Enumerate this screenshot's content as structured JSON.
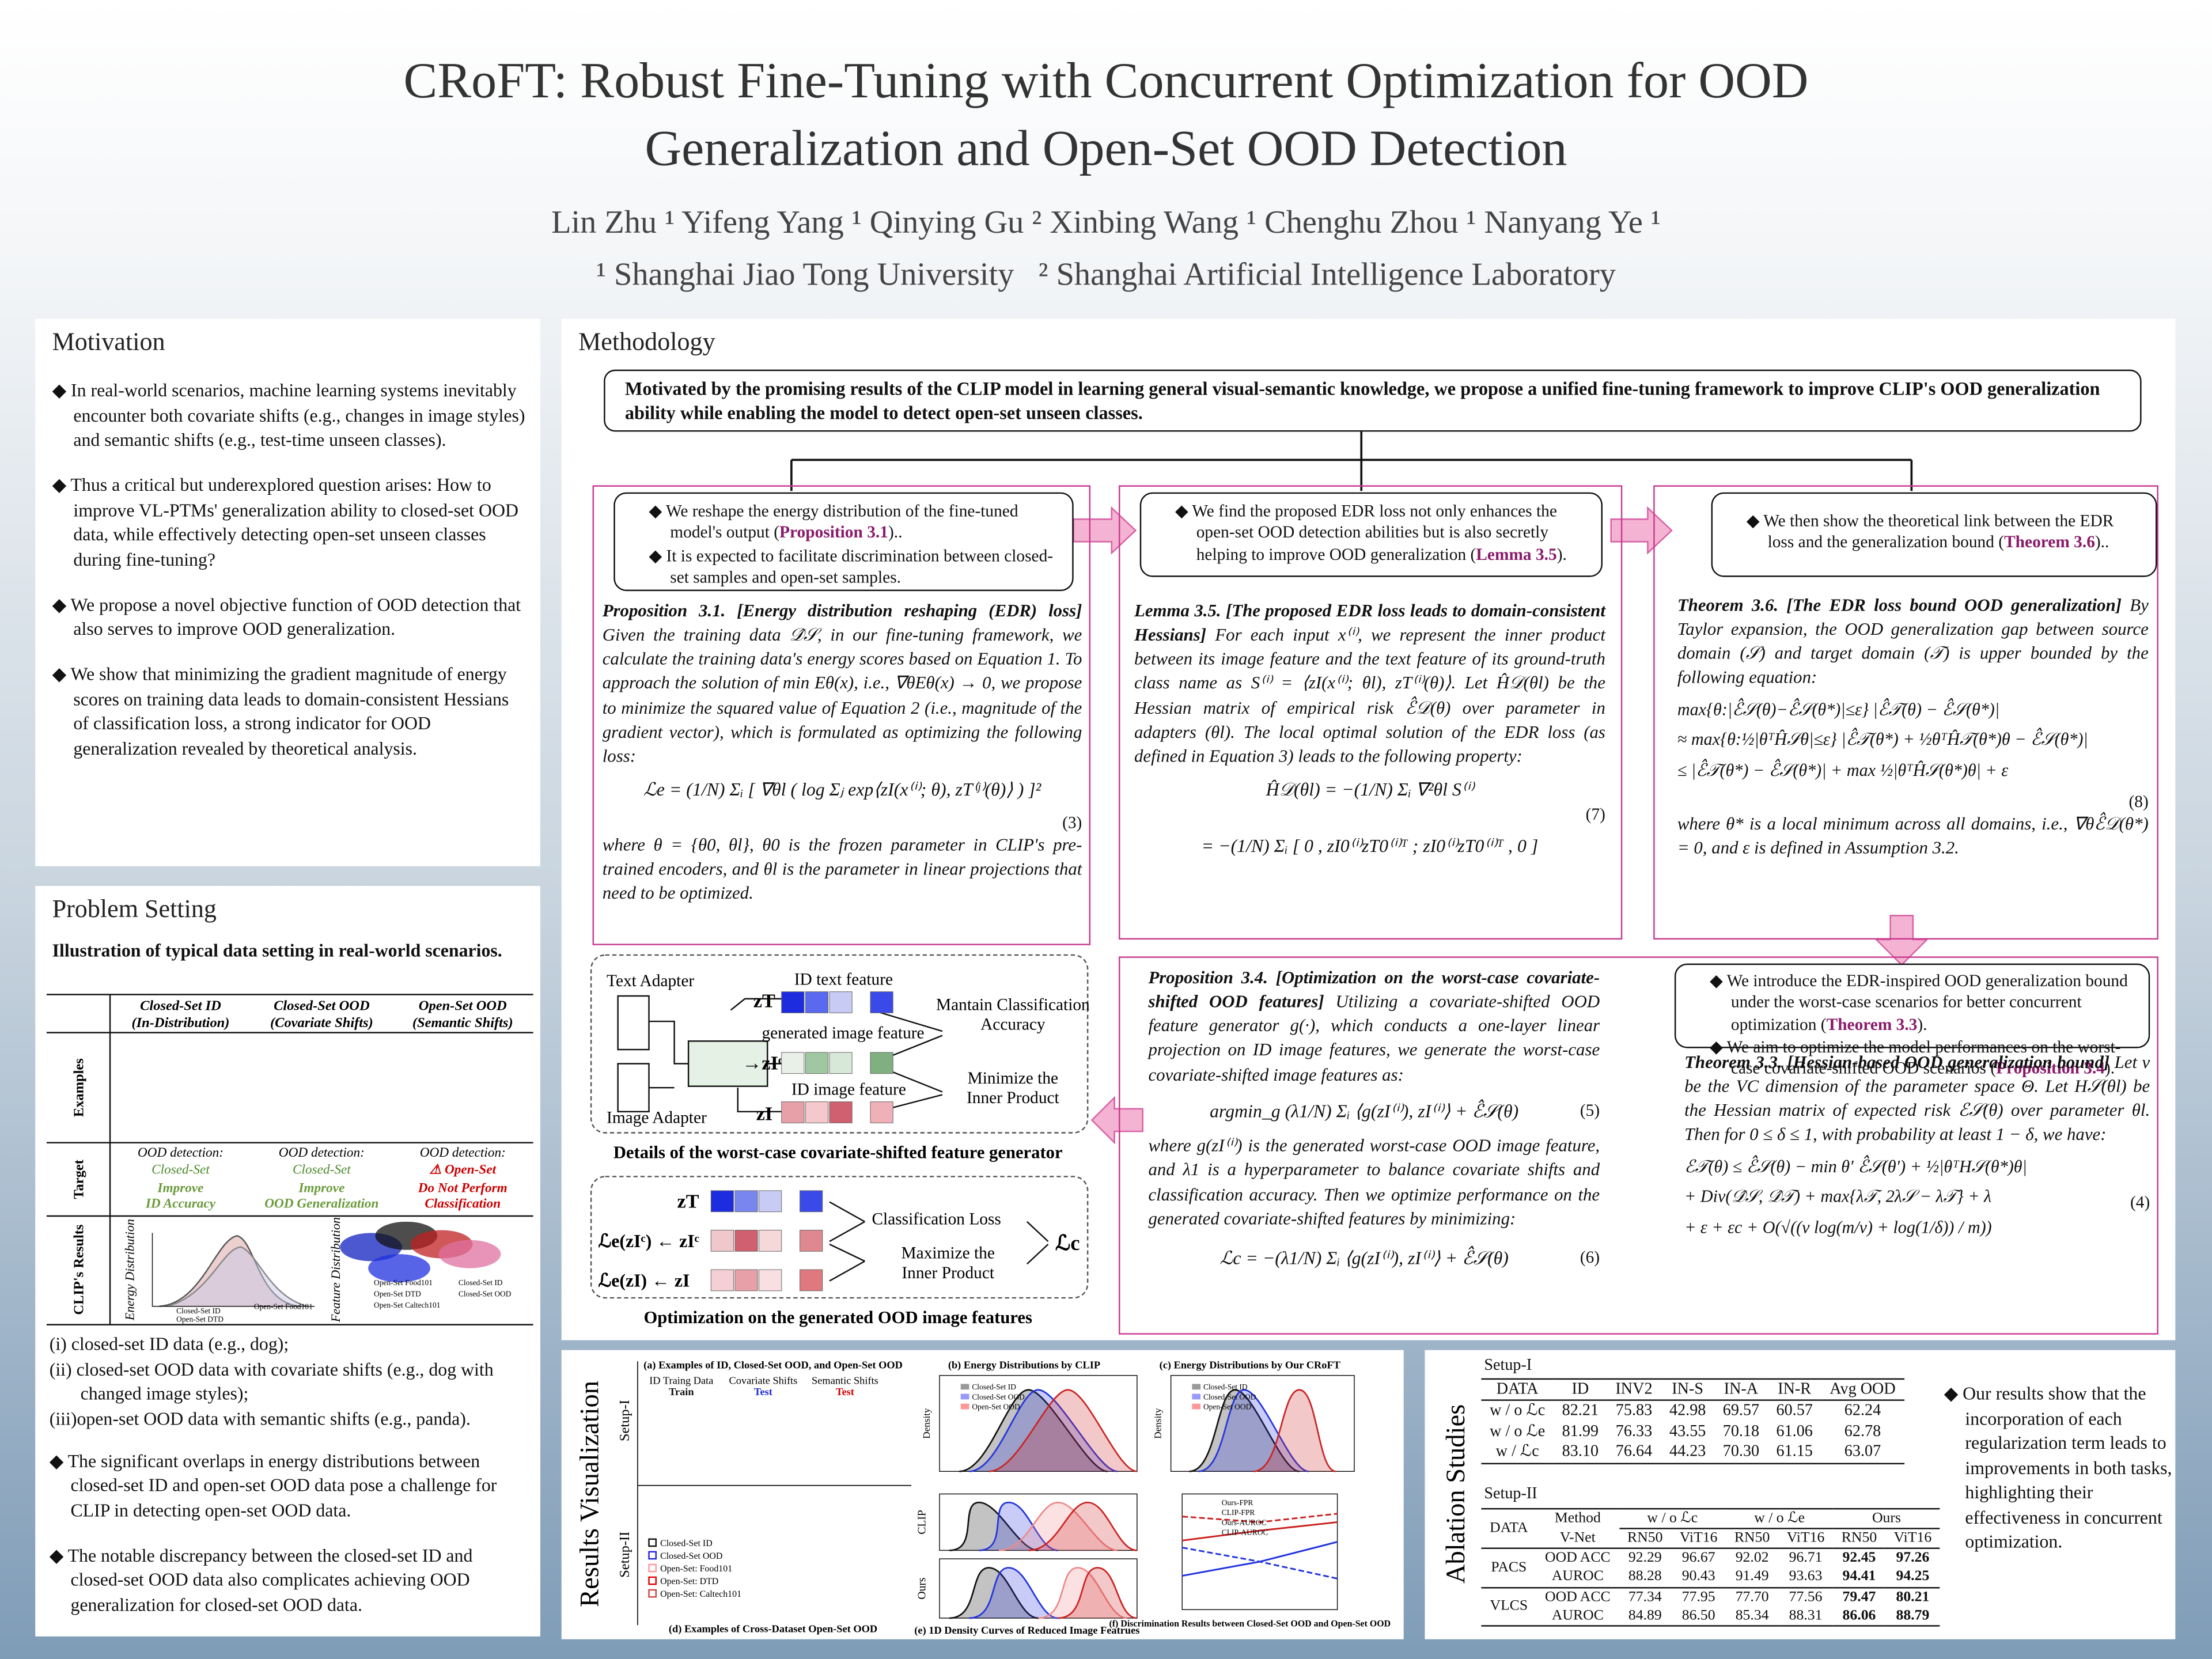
{
  "header": {
    "title_line1": "CRoFT: Robust Fine-Tuning with Concurrent Optimization for OOD",
    "title_line2": "Generalization and Open-Set OOD Detection",
    "authors": "Lin Zhu ¹ Yifeng Yang ¹ Qinying Gu ² Xinbing Wang ¹ Chenghu Zhou ¹ Nanyang Ye ¹",
    "affiliations": "¹ Shanghai Jiao Tong University   ² Shanghai Artificial Intelligence Laboratory"
  },
  "motivation": {
    "heading": "Motivation",
    "bullets": [
      "In real-world scenarios, machine learning systems inevitably encounter both covariate shifts (e.g., changes in image styles) and semantic shifts (e.g., test-time unseen classes).",
      "Thus a critical but underexplored question arises: How to improve VL-PTMs' generalization ability to closed-set OOD data, while effectively detecting open-set unseen classes during fine-tuning?",
      "We propose a novel objective function of OOD detection that also serves to improve OOD generalization.",
      "We show that minimizing the gradient magnitude of energy scores on training data leads to domain-consistent Hessians of classification loss, a strong indicator for OOD generalization revealed by theoretical analysis."
    ]
  },
  "problem_setting": {
    "heading": "Problem Setting",
    "subtitle": "Illustration of typical data setting in real-world scenarios.",
    "columns": [
      "Closed-Set ID",
      "Closed-Set OOD",
      "Open-Set OOD"
    ],
    "column_notes": [
      "(In-Distribution)",
      "(Covariate Shifts)",
      "(Semantic Shifts)"
    ],
    "row_labels": [
      "Examples",
      "Target",
      "CLIP's Results"
    ],
    "targets": [
      {
        "detection": "OOD detection:",
        "goal": "Closed-Set",
        "effect": [
          "Improve",
          "ID Accuracy"
        ]
      },
      {
        "detection": "OOD detection:",
        "goal": "Closed-Set",
        "effect": [
          "Improve",
          "OOD Generalization"
        ]
      },
      {
        "detection": "OOD detection:",
        "goal": "⚠ Open-Set",
        "effect": [
          "Do Not Perform",
          "Classification"
        ]
      }
    ],
    "chart_axes": [
      "Energy Distribution",
      "Feature Distribution"
    ],
    "energy_legend": [
      "Closed-Set ID",
      "Open-Set DTD",
      "Open-Set Food101"
    ],
    "feature_legend": [
      "Open-Set Food101",
      "Open-Set DTD",
      "Open-Set Caltech101",
      "Closed-Set ID",
      "Closed-Set OOD"
    ],
    "list": [
      "(i)  closed-set ID data (e.g., dog);",
      "(ii) closed-set OOD data with covariate shifts (e.g., dog with changed image styles);",
      "(iii)open-set OOD data with semantic shifts (e.g., panda)."
    ],
    "bullets": [
      "The significant overlaps in energy distributions between closed-set ID and open-set OOD data pose a challenge for CLIP in detecting open-set OOD data.",
      "The notable discrepancy between the closed-set ID and closed-set OOD data also complicates achieving OOD generalization for closed-set OOD data."
    ]
  },
  "methodology": {
    "heading": "Methodology",
    "intro": "Motivated by the promising results of the CLIP model in learning general visual-semantic knowledge, we propose a unified fine-tuning framework to improve CLIP's OOD generalization ability while enabling the model to detect open-set unseen classes.",
    "col1_box": [
      {
        "pre": "We reshape the energy distribution of the fine-tuned model's output (",
        "ref": "Proposition 3.1",
        "post": ").."
      },
      {
        "pre": "It is expected to facilitate discrimination between closed-set samples and open-set samples.",
        "ref": "",
        "post": ""
      }
    ],
    "col2_box": [
      {
        "pre": "We find the proposed EDR loss not only enhances the open-set OOD detection abilities but is also secretly helping to improve OOD generalization (",
        "ref": "Lemma 3.5",
        "post": ")."
      }
    ],
    "col3_box": [
      {
        "pre": "We then show the  theoretical link between the EDR loss and the generalization bound (",
        "ref": "Theorem 3.6",
        "post": ").."
      }
    ],
    "prop31": {
      "title": "Proposition 3.1.  [Energy distribution reshaping (EDR) loss]",
      "body": "Given the training data 𝒟̂𝒮, in our fine-tuning framework, we calculate the training data's energy scores based on Equation 1. To approach the solution of min Eθ(x), i.e., ∇θEθ(x) → 0, we propose to minimize the squared value of Equation 2 (i.e., magnitude of the gradient vector), which is formulated as optimizing the following loss:",
      "equation": "ℒe = (1/N) Σᵢ [ ∇θl ( log Σⱼ exp⟨zI(x⁽ⁱ⁾; θ), zT⁽ʲ⁾(θ)⟩ ) ]²",
      "eq_number": "(3)",
      "after": "where θ = {θ0, θl}, θ0 is the frozen parameter in CLIP's pre-trained encoders, and θl is the parameter in linear projections that need to be optimized."
    },
    "lemma35": {
      "title": "Lemma 3.5.  [The proposed EDR loss leads to domain-consistent Hessians]",
      "body": "For each input x⁽ⁱ⁾, we represent the inner product between its image feature and the text feature of its ground-truth class name as S⁽ⁱ⁾ = ⟨zI(x⁽ⁱ⁾; θl), zT⁽ⁱ⁾(θ)⟩. Let Ĥ𝒟(θl) be the Hessian matrix of empirical risk ℰ̂𝒟(θ) over parameter in adapters (θl). The local optimal solution of the EDR loss (as defined in Equation 3) leads to the following property:",
      "equation1": "Ĥ𝒟(θl) = −(1/N) Σᵢ ∇²θl S⁽ⁱ⁾",
      "equation2": "= −(1/N) Σᵢ [ 0 , zI0⁽ⁱ⁾zT0⁽ⁱ⁾ᵀ ; zI0⁽ⁱ⁾zT0⁽ⁱ⁾ᵀ , 0 ]",
      "eq_number": "(7)"
    },
    "theorem36": {
      "title": "Theorem 3.6.  [The EDR loss bound OOD generalization]",
      "body": "By Taylor expansion, the OOD generalization gap between source domain (𝒮) and target domain (𝒯) is upper bounded by the following equation:",
      "equation": [
        "max{θ:|ℰ̂𝒮(θ)−ℰ̂𝒮(θ*)|≤ε} |ℰ̂𝒯(θ) − ℰ̂𝒮(θ*)|",
        "≈ max{θ:½|θᵀĤ𝒮θ|≤ε} |ℰ̂𝒯(θ*) + ½θᵀĤ𝒯(θ*)θ − ℰ̂𝒮(θ*)|",
        "≤ |ℰ̂𝒯(θ*) − ℰ̂𝒮(θ*)| + max ½|θᵀĤ𝒮(θ*)θ| + ε"
      ],
      "eq_number": "(8)",
      "after": "where θ* is a local minimum across all domains, i.e., ∇θℰ̂𝒟(θ*) = 0, and ε is defined in Assumption 3.2."
    },
    "right_box": [
      {
        "pre": "We introduce the EDR-inspired OOD generalization bound under the worst-case scenarios for better concurrent optimization (",
        "ref": "Theorem 3.3",
        "post": ")."
      },
      {
        "pre": "We  aim to optimize the model performances on the worst-case covariate-shifted OOD scenarios (",
        "ref": "Proposition 3.4",
        "post": ")."
      }
    ],
    "theorem33": {
      "title": "Theorem 3.3.  [Hessian-based OOD generalization bound]",
      "body": "Let v be the VC dimension of the parameter space Θ. Let H𝒮(θl) be the Hessian matrix of expected risk ℰ𝒮(θ) over parameter θl. Then for 0 ≤ δ ≤ 1, with probability at least 1 − δ, we have:",
      "equation": [
        "ℰ𝒯(θ) ≤ ℰ̂𝒮(θ) − min θ′ ℰ̂𝒮(θ′) + ½|θᵀH𝒮(θ*)θ|",
        "+ Div(𝒟̂𝒮, 𝒟̂𝒯) + max{λ𝒯, 2λ𝒮 − λ𝒯} + λ",
        "+ ε + εc + O(√((v log(m/v) + log(1/δ)) / m))"
      ],
      "eq_number": "(4)"
    },
    "prop34": {
      "title": "Proposition 3.4.  [Optimization on the worst-case covariate-shifted OOD features]",
      "body": "Utilizing a covariate-shifted OOD feature generator g(·), which conducts a one-layer linear projection on ID image features, we generate the worst-case covariate-shifted image features as:",
      "equation1": "argmin_g (λ1/N) Σᵢ ⟨g(zI⁽ⁱ⁾), zI⁽ⁱ⁾⟩ + ℰ̂𝒮(θ)",
      "eq_number1": "(5)",
      "middle": "where g(zI⁽ⁱ⁾) is the generated worst-case OOD image feature, and λ1 is a hyperparameter to balance covariate shifts and classification accuracy. Then we optimize performance on the generated covariate-shifted features by minimizing:",
      "equation2": "ℒc = −(λ1/N) Σᵢ ⟨g(zI⁽ⁱ⁾), zI⁽ⁱ⁾⟩ + ℰ̂𝒮(θ)",
      "eq_number2": "(6)"
    },
    "generator_fig": {
      "text_adapter": "Text Adapter",
      "image_adapter": "Image Adapter",
      "id_text_feature": "ID text feature",
      "generated_feature": "generated image feature",
      "id_image_feature": "ID image feature",
      "zt": "zT",
      "zic": "→zIᶜ",
      "zi": "zI",
      "goal1": "Mantain Classification Accuracy",
      "goal2": "Minimize the Inner Product",
      "caption": "Details of the worst-case covariate-shifted feature generator"
    },
    "optimization_fig": {
      "zt": "zT",
      "row2": "ℒe(zIᶜ) ← zIᶜ",
      "row3": "ℒe(zI) ← zI",
      "loss1": "Classification Loss",
      "loss2": "Maximize the Inner Product",
      "lc": "ℒc",
      "caption": "Optimization on the generated OOD image features"
    }
  },
  "results": {
    "heading": "Results Visualization",
    "setups": [
      "Setup-I",
      "Setup-II"
    ],
    "panel_titles": [
      "(a) Examples of  ID, Closed-Set OOD, and Open-Set OOD",
      "(b) Energy Distributions by CLIP",
      "(c) Energy Distributions by Our CRoFT",
      "(d) Examples of  Cross-Dataset Open-Set OOD",
      "(e) 1D Density Curves of  Reduced Image Featrues",
      "(f) Discrimination Results between Closed-Set OOD and Open-Set OOD"
    ],
    "example_labels": [
      "ID Traing Data",
      "Covariate Shifts",
      "Semantic Shifts"
    ],
    "example_sublabels": [
      "Train",
      "Test",
      "Test"
    ],
    "energy_legend": [
      "Closed-Set ID",
      "Closed-Set OOD",
      "Open-Set OOD"
    ],
    "cross_legend": [
      "Closed-Set ID",
      "Closed-Set OOD",
      "Open-Set: Food101",
      "Open-Set: DTD",
      "Open-Set: Caltech101"
    ],
    "density_label": "Density",
    "row_labels": [
      "CLIP",
      "Ours"
    ],
    "fpr_legend": [
      "Ours-FPR",
      "CLIP-FPR",
      "Ours-AUROC",
      "CLIP-AUROC"
    ]
  },
  "ablation": {
    "heading": "Ablation Studies",
    "setup1": {
      "label": "Setup-I",
      "header": [
        "DATA",
        "ID",
        "INV2",
        "IN-S",
        "IN-A",
        "IN-R",
        "Avg OOD"
      ],
      "rows": [
        [
          "w / o ℒc",
          "82.21",
          "75.83",
          "42.98",
          "69.57",
          "60.57",
          "62.24"
        ],
        [
          "w / o ℒe",
          "81.99",
          "76.33",
          "43.55",
          "70.18",
          "61.06",
          "62.78"
        ],
        [
          "w / ℒc",
          "83.10",
          "76.64",
          "44.23",
          "70.30",
          "61.15",
          "63.07"
        ]
      ]
    },
    "setup2": {
      "label": "Setup-II",
      "header1": [
        "DATA",
        "Method",
        "w / o ℒc",
        "w / o ℒe",
        "Ours"
      ],
      "header2": [
        "V-Net",
        "RN50",
        "ViT16",
        "RN50",
        "ViT16",
        "RN50",
        "ViT16"
      ],
      "groups": [
        {
          "name": "PACS",
          "rows": [
            [
              "OOD ACC",
              "92.29",
              "96.67",
              "92.02",
              "96.71",
              "92.45",
              "97.26"
            ],
            [
              "AUROC",
              "88.28",
              "90.43",
              "91.49",
              "93.63",
              "94.41",
              "94.25"
            ]
          ]
        },
        {
          "name": "VLCS",
          "rows": [
            [
              "OOD ACC",
              "77.34",
              "77.95",
              "77.70",
              "77.56",
              "79.47",
              "80.21"
            ],
            [
              "AUROC",
              "84.89",
              "86.50",
              "85.34",
              "88.31",
              "86.06",
              "88.79"
            ]
          ]
        }
      ]
    },
    "conclusion": "Our results show that the incorporation of each regularization term leads to improvements in both tasks, highlighting their effectiveness in concurrent optimization."
  }
}
